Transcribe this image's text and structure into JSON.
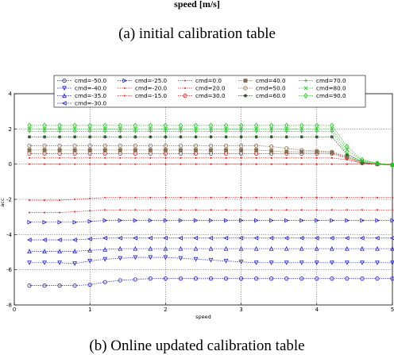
{
  "header": {
    "top_axis_label": "speed [m/s]",
    "caption_a": "(a) initial calibration table",
    "caption_b": "(b) Online updated calibration table"
  },
  "chart_data": {
    "type": "line",
    "xlabel": "speed",
    "ylabel": "acc",
    "xlim": [
      0,
      5
    ],
    "ylim": [
      -8,
      4
    ],
    "xticks": [
      0,
      1,
      2,
      3,
      4,
      5
    ],
    "yticks": [
      -8,
      -6,
      -4,
      -2,
      0,
      2,
      4
    ],
    "grid": true,
    "legend_position": "top",
    "x": [
      0.2,
      0.4,
      0.6,
      0.8,
      1.0,
      1.2,
      1.4,
      1.6,
      1.8,
      2.0,
      2.2,
      2.4,
      2.6,
      2.8,
      3.0,
      3.2,
      3.4,
      3.6,
      3.8,
      4.0,
      4.2,
      4.4,
      4.6,
      4.8,
      5.0
    ],
    "series": [
      {
        "name": "cmd=-50.0",
        "color": "#1f1fd0",
        "marker": "hexagon",
        "values": [
          -6.9,
          -6.9,
          -6.9,
          -6.9,
          -6.85,
          -6.7,
          -6.6,
          -6.55,
          -6.5,
          -6.5,
          -6.5,
          -6.5,
          -6.5,
          -6.5,
          -6.5,
          -6.5,
          -6.5,
          -6.5,
          -6.5,
          -6.5,
          -6.5,
          -6.5,
          -6.5,
          -6.5,
          -6.5
        ]
      },
      {
        "name": "cmd=-40.0",
        "color": "#1f1fd0",
        "marker": "triangle-down",
        "values": [
          -5.6,
          -5.6,
          -5.6,
          -5.65,
          -5.5,
          -5.4,
          -5.35,
          -5.3,
          -5.3,
          -5.3,
          -5.35,
          -5.4,
          -5.45,
          -5.5,
          -5.55,
          -5.6,
          -5.6,
          -5.6,
          -5.6,
          -5.6,
          -5.6,
          -5.6,
          -5.6,
          -5.6,
          -5.6
        ]
      },
      {
        "name": "cmd=-35.0",
        "color": "#1f1fd0",
        "marker": "triangle-up",
        "values": [
          -4.95,
          -4.95,
          -4.95,
          -4.95,
          -4.9,
          -4.85,
          -4.8,
          -4.8,
          -4.8,
          -4.8,
          -4.8,
          -4.8,
          -4.8,
          -4.8,
          -4.8,
          -4.8,
          -4.8,
          -4.8,
          -4.8,
          -4.8,
          -4.8,
          -4.8,
          -4.8,
          -4.8,
          -4.8
        ]
      },
      {
        "name": "cmd=-30.0",
        "color": "#1f1fd0",
        "marker": "triangle-left",
        "values": [
          -4.3,
          -4.3,
          -4.3,
          -4.3,
          -4.25,
          -4.2,
          -4.2,
          -4.2,
          -4.2,
          -4.2,
          -4.2,
          -4.2,
          -4.2,
          -4.2,
          -4.2,
          -4.2,
          -4.2,
          -4.2,
          -4.2,
          -4.2,
          -4.2,
          -4.2,
          -4.2,
          -4.2,
          -4.2
        ]
      },
      {
        "name": "cmd=-25.0",
        "color": "#1f1fd0",
        "marker": "triangle-right",
        "values": [
          -3.3,
          -3.3,
          -3.3,
          -3.3,
          -3.25,
          -3.2,
          -3.2,
          -3.2,
          -3.2,
          -3.2,
          -3.2,
          -3.2,
          -3.2,
          -3.2,
          -3.2,
          -3.2,
          -3.2,
          -3.2,
          -3.2,
          -3.2,
          -3.2,
          -3.2,
          -3.2,
          -3.2,
          -3.2
        ]
      },
      {
        "name": "cmd=-20.0",
        "color": "#e02020",
        "marker": "dot",
        "values": [
          -2.75,
          -2.75,
          -2.75,
          -2.7,
          -2.65,
          -2.6,
          -2.6,
          -2.6,
          -2.6,
          -2.6,
          -2.6,
          -2.6,
          -2.6,
          -2.6,
          -2.6,
          -2.6,
          -2.6,
          -2.6,
          -2.6,
          -2.6,
          -2.6,
          -2.6,
          -2.6,
          -2.6,
          -2.6
        ]
      },
      {
        "name": "cmd=-15.0",
        "color": "#e02020",
        "marker": "dot",
        "values": [
          -2.05,
          -2.05,
          -2.05,
          -2.0,
          -1.95,
          -1.9,
          -1.9,
          -1.9,
          -1.9,
          -1.9,
          -1.9,
          -1.9,
          -1.9,
          -1.9,
          -1.9,
          -1.9,
          -1.9,
          -1.9,
          -1.9,
          -1.9,
          -1.9,
          -1.9,
          -1.9,
          -1.9,
          -1.9
        ]
      },
      {
        "name": "cmd=0.0",
        "color": "#e02020",
        "marker": "dot",
        "values": [
          0.0,
          0.0,
          0.0,
          0.0,
          0.0,
          0.0,
          0.0,
          0.0,
          0.0,
          0.0,
          0.0,
          0.0,
          0.0,
          0.0,
          0.0,
          0.0,
          0.0,
          0.0,
          0.0,
          0.0,
          0.0,
          0.0,
          0.0,
          0.0,
          0.0
        ]
      },
      {
        "name": "cmd=20.0",
        "color": "#e02020",
        "marker": "dot",
        "values": [
          0.35,
          0.35,
          0.35,
          0.35,
          0.35,
          0.35,
          0.35,
          0.35,
          0.35,
          0.35,
          0.35,
          0.35,
          0.35,
          0.35,
          0.35,
          0.35,
          0.35,
          0.35,
          0.35,
          0.35,
          0.35,
          0.25,
          0.05,
          0.0,
          -0.05
        ]
      },
      {
        "name": "cmd=30.0",
        "color": "#e02020",
        "marker": "circle",
        "values": [
          0.6,
          0.6,
          0.6,
          0.6,
          0.6,
          0.6,
          0.6,
          0.6,
          0.6,
          0.6,
          0.6,
          0.6,
          0.6,
          0.6,
          0.6,
          0.6,
          0.6,
          0.6,
          0.6,
          0.6,
          0.6,
          0.35,
          0.05,
          0.0,
          -0.05
        ]
      },
      {
        "name": "cmd=40.0",
        "color": "#8a7050",
        "marker": "square",
        "values": [
          0.8,
          0.8,
          0.8,
          0.8,
          0.8,
          0.8,
          0.8,
          0.8,
          0.8,
          0.8,
          0.8,
          0.8,
          0.8,
          0.8,
          0.8,
          0.8,
          0.75,
          0.7,
          0.7,
          0.7,
          0.65,
          0.4,
          0.1,
          0.0,
          -0.05
        ]
      },
      {
        "name": "cmd=50.0",
        "color": "#8a7050",
        "marker": "circle",
        "values": [
          1.05,
          1.05,
          1.05,
          1.05,
          1.05,
          1.05,
          1.05,
          1.05,
          1.05,
          1.05,
          1.05,
          1.05,
          1.05,
          1.05,
          1.05,
          1.05,
          1.0,
          0.9,
          0.8,
          0.75,
          0.7,
          0.45,
          0.1,
          0.0,
          -0.05
        ]
      },
      {
        "name": "cmd=60.0",
        "color": "#2a4a2a",
        "marker": "star",
        "values": [
          1.55,
          1.55,
          1.55,
          1.55,
          1.55,
          1.55,
          1.55,
          1.55,
          1.55,
          1.55,
          1.55,
          1.55,
          1.55,
          1.55,
          1.55,
          1.55,
          1.55,
          1.55,
          1.55,
          1.55,
          1.55,
          0.55,
          0.1,
          0.0,
          -0.05
        ]
      },
      {
        "name": "cmd=70.0",
        "color": "#22c822",
        "marker": "plus",
        "values": [
          1.85,
          1.85,
          1.85,
          1.85,
          1.85,
          1.85,
          1.85,
          1.85,
          1.85,
          1.85,
          1.85,
          1.85,
          1.85,
          1.85,
          1.85,
          1.85,
          1.85,
          1.85,
          1.85,
          1.85,
          1.85,
          0.6,
          0.15,
          0.05,
          -0.05
        ]
      },
      {
        "name": "cmd=80.0",
        "color": "#22c822",
        "marker": "x",
        "values": [
          2.0,
          2.0,
          2.0,
          2.0,
          2.0,
          2.0,
          2.0,
          2.0,
          2.0,
          2.0,
          2.0,
          2.0,
          2.0,
          2.0,
          2.0,
          2.0,
          2.0,
          2.0,
          2.0,
          2.0,
          2.0,
          0.8,
          0.2,
          0.05,
          -0.05
        ]
      },
      {
        "name": "cmd=90.0",
        "color": "#22c822",
        "marker": "diamond",
        "values": [
          2.2,
          2.2,
          2.2,
          2.2,
          2.2,
          2.2,
          2.2,
          2.2,
          2.2,
          2.2,
          2.2,
          2.2,
          2.2,
          2.2,
          2.2,
          2.2,
          2.2,
          2.2,
          2.2,
          2.2,
          2.2,
          1.0,
          0.25,
          0.05,
          -0.05
        ]
      }
    ]
  }
}
